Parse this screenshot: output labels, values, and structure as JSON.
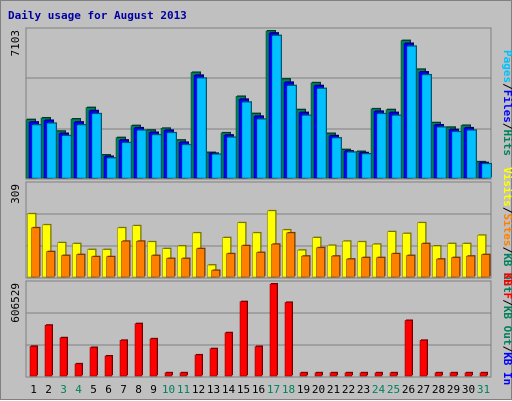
{
  "title": "Daily usage for August 2013",
  "colors": {
    "background": "#c0c0c0",
    "title": "#0000a0",
    "grid": "#808080",
    "hits": "#00805c",
    "files": "#0000ff",
    "pages": "#00c0ff",
    "visits": "#ffff00",
    "sites": "#ff8000",
    "kb_in": "#0000ff",
    "kb_out": "#00805c",
    "kb_f": "#ff0000",
    "weekend": "#00805c",
    "weekday": "#000000"
  },
  "chart_data": [
    {
      "type": "bar",
      "panel": "hits-files-pages",
      "y_max_label": "7103",
      "ylim": [
        0,
        7103
      ],
      "categories": [
        "1",
        "2",
        "3",
        "4",
        "5",
        "6",
        "7",
        "8",
        "9",
        "10",
        "11",
        "12",
        "13",
        "14",
        "15",
        "16",
        "17",
        "18",
        "19",
        "20",
        "21",
        "22",
        "23",
        "24",
        "25",
        "26",
        "27",
        "28",
        "29",
        "30",
        "31"
      ],
      "weekend_days": [
        "3",
        "4",
        "10",
        "11",
        "17",
        "18",
        "24",
        "25",
        "31"
      ],
      "legend": [
        "Pages",
        "/",
        "Files",
        "/",
        "Hits"
      ],
      "series": [
        {
          "name": "Hits",
          "values": [
            2820,
            2900,
            2260,
            2850,
            3400,
            1110,
            1950,
            2530,
            2310,
            2400,
            1830,
            5100,
            1230,
            2180,
            3940,
            3110,
            7103,
            4780,
            3300,
            4600,
            2150,
            1370,
            1280,
            3340,
            3300,
            6640,
            5250,
            2670,
            2450,
            2540,
            780
          ]
        },
        {
          "name": "Files",
          "values": [
            2700,
            2780,
            2150,
            2700,
            3250,
            1040,
            1830,
            2420,
            2200,
            2300,
            1720,
            4960,
            1190,
            2070,
            3800,
            2980,
            7000,
            4620,
            3160,
            4460,
            2040,
            1300,
            1220,
            3220,
            3160,
            6500,
            5120,
            2560,
            2340,
            2420,
            740
          ]
        },
        {
          "name": "Pages",
          "values": [
            2560,
            2640,
            2040,
            2560,
            3100,
            960,
            1700,
            2300,
            2080,
            2180,
            1600,
            4820,
            1140,
            1960,
            3660,
            2840,
            6880,
            4460,
            3020,
            4320,
            1930,
            1240,
            1160,
            3100,
            3020,
            6360,
            4980,
            2450,
            2230,
            2300,
            680
          ]
        }
      ]
    },
    {
      "type": "bar",
      "panel": "visits-sites",
      "y_max_label": "309",
      "ylim": [
        0,
        309
      ],
      "categories": [
        "1",
        "2",
        "3",
        "4",
        "5",
        "6",
        "7",
        "8",
        "9",
        "10",
        "11",
        "12",
        "13",
        "14",
        "15",
        "16",
        "17",
        "18",
        "19",
        "20",
        "21",
        "22",
        "23",
        "24",
        "25",
        "26",
        "27",
        "28",
        "29",
        "30",
        "31"
      ],
      "legend": [
        "Visits",
        "/",
        "Sites",
        "/",
        "KB Out"
      ],
      "series": [
        {
          "name": "Visits",
          "values": [
            212,
            175,
            115,
            112,
            92,
            92,
            165,
            172,
            118,
            95,
            104,
            148,
            40,
            132,
            182,
            148,
            222,
            158,
            90,
            132,
            106,
            120,
            118,
            110,
            152,
            146,
            182,
            104,
            112,
            112,
            140
          ]
        },
        {
          "name": "Sites",
          "values": [
            165,
            85,
            72,
            75,
            68,
            68,
            120,
            120,
            72,
            62,
            62,
            95,
            22,
            78,
            105,
            82,
            110,
            148,
            70,
            98,
            70,
            60,
            65,
            65,
            78,
            72,
            112,
            60,
            65,
            70,
            75
          ]
        }
      ]
    },
    {
      "type": "bar",
      "panel": "kb-f",
      "y_max_label": "606529",
      "ylim": [
        0,
        606529
      ],
      "categories": [
        "1",
        "2",
        "3",
        "4",
        "5",
        "6",
        "7",
        "8",
        "9",
        "10",
        "11",
        "12",
        "13",
        "14",
        "15",
        "16",
        "17",
        "18",
        "19",
        "20",
        "21",
        "22",
        "23",
        "24",
        "25",
        "26",
        "27",
        "28",
        "29",
        "30",
        "31"
      ],
      "legend": [
        "KB F",
        "/",
        "KB Out",
        "/",
        "KB In"
      ],
      "series": [
        {
          "name": "KB F",
          "values": [
            195000,
            335000,
            252000,
            80000,
            188000,
            132000,
            235000,
            345000,
            245000,
            21000,
            21000,
            139000,
            180000,
            285000,
            490000,
            194000,
            606529,
            485000,
            21000,
            21000,
            21000,
            21000,
            21000,
            21000,
            21000,
            366000,
            235000,
            21000,
            21000,
            21000,
            21000
          ]
        }
      ]
    }
  ]
}
